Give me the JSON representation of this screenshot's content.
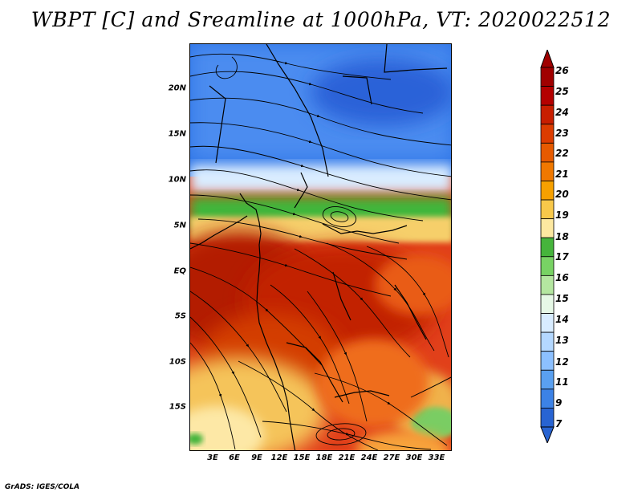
{
  "header": {
    "title": "WBPT [C] and Sreamline at 1000hPa, VT: 2020022512"
  },
  "map": {
    "y_ticks": [
      "20N",
      "15N",
      "10N",
      "5N",
      "EQ",
      "5S",
      "10S",
      "15S"
    ],
    "x_ticks": [
      "3E",
      "6E",
      "9E",
      "12E",
      "15E",
      "18E",
      "21E",
      "24E",
      "27E",
      "30E",
      "33E"
    ]
  },
  "colorbar": {
    "labels": [
      "26",
      "25",
      "24",
      "23",
      "22",
      "21",
      "20",
      "19",
      "18",
      "17",
      "16",
      "15",
      "14",
      "13",
      "12",
      "11",
      "9",
      "7"
    ],
    "colors": [
      "#a00000",
      "#b40000",
      "#c81e00",
      "#dc3c00",
      "#e65a00",
      "#f07800",
      "#f6a000",
      "#f8c84a",
      "#fde8a0",
      "#46b43c",
      "#78d264",
      "#b4e6a0",
      "#e6f8e6",
      "#d8ecff",
      "#b4d8ff",
      "#8cc0ff",
      "#5aa0f0",
      "#3c82e6",
      "#2864d2"
    ]
  },
  "footer": {
    "text": "GrADS: IGES/COLA"
  }
}
